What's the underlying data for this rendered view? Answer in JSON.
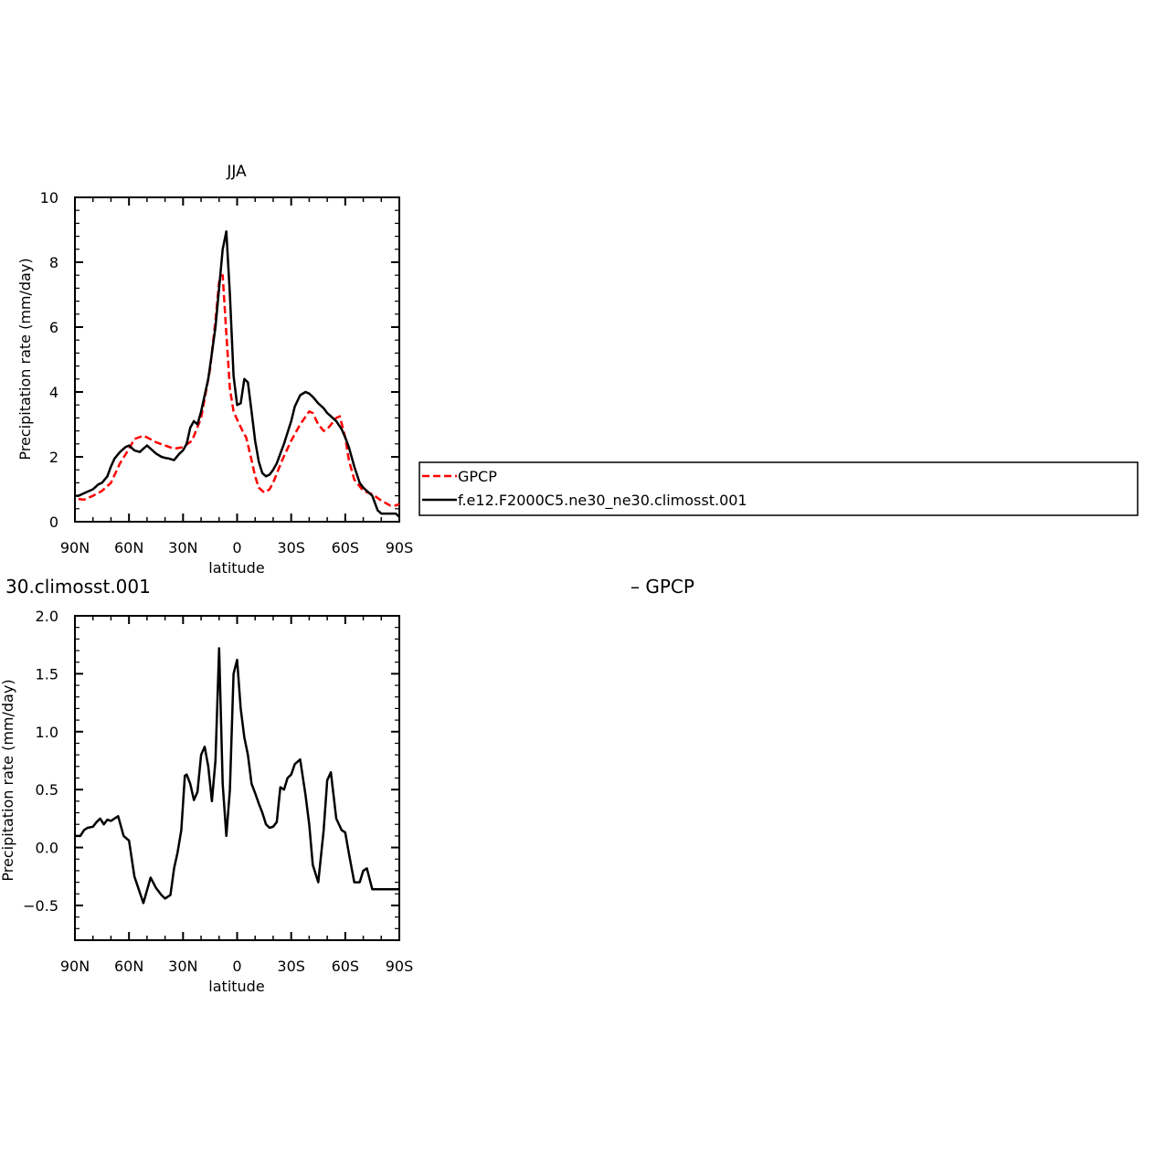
{
  "chart_data": [
    {
      "type": "line",
      "title": "JJA",
      "xlabel": "latitude",
      "ylabel": "Precipitation rate (mm/day)",
      "xlim": [
        -90,
        90
      ],
      "ylim": [
        0,
        10
      ],
      "xticks": [
        {
          "value": -90,
          "label": "90N"
        },
        {
          "value": -60,
          "label": "60N"
        },
        {
          "value": -30,
          "label": "30N"
        },
        {
          "value": 0,
          "label": "0"
        },
        {
          "value": 30,
          "label": "30S"
        },
        {
          "value": 60,
          "label": "60S"
        },
        {
          "value": 90,
          "label": "90S"
        }
      ],
      "yticks": [
        {
          "value": 0,
          "label": "0"
        },
        {
          "value": 2,
          "label": "2"
        },
        {
          "value": 4,
          "label": "4"
        },
        {
          "value": 6,
          "label": "6"
        },
        {
          "value": 8,
          "label": "8"
        },
        {
          "value": 10,
          "label": "10"
        }
      ],
      "legend_position": "right",
      "series": [
        {
          "name": "GPCP",
          "color": "#ff0000",
          "dash": "dashed",
          "x": [
            -88,
            -85,
            -80,
            -75,
            -70,
            -65,
            -60,
            -57,
            -52,
            -50,
            -45,
            -40,
            -35,
            -30,
            -25,
            -20,
            -15,
            -12,
            -10,
            -8,
            -6,
            -4,
            -2,
            0,
            3,
            5,
            8,
            10,
            12,
            15,
            18,
            20,
            25,
            30,
            35,
            40,
            42,
            45,
            48,
            50,
            55,
            57,
            60,
            62,
            65,
            70,
            75,
            80,
            85,
            88,
            90
          ],
          "y": [
            0.7,
            0.68,
            0.8,
            0.95,
            1.2,
            1.8,
            2.25,
            2.55,
            2.65,
            2.6,
            2.45,
            2.35,
            2.25,
            2.3,
            2.5,
            3.2,
            4.7,
            6.2,
            7.4,
            7.6,
            5.8,
            4.1,
            3.4,
            3.15,
            2.8,
            2.6,
            1.9,
            1.4,
            1.05,
            0.9,
            1.0,
            1.2,
            1.9,
            2.5,
            3.0,
            3.4,
            3.35,
            3.0,
            2.8,
            2.85,
            3.2,
            3.25,
            2.6,
            1.9,
            1.3,
            0.95,
            0.85,
            0.65,
            0.5,
            0.5,
            0.55
          ]
        },
        {
          "name": "f.e12.F2000C5.ne30_ne30.climosst.001",
          "color": "#000000",
          "dash": "solid",
          "x": [
            -90,
            -88,
            -84,
            -80,
            -77,
            -75,
            -72,
            -70,
            -68,
            -65,
            -62,
            -60,
            -57,
            -54,
            -52,
            -50,
            -45,
            -42,
            -40,
            -38,
            -35,
            -32,
            -30,
            -28,
            -26,
            -24,
            -22,
            -20,
            -18,
            -16,
            -14,
            -12,
            -10,
            -8,
            -6,
            -4,
            -2,
            0,
            2,
            4,
            6,
            8,
            10,
            12,
            14,
            16,
            18,
            20,
            22,
            24,
            26,
            28,
            30,
            32,
            35,
            38,
            40,
            42,
            45,
            48,
            50,
            52,
            55,
            58,
            60,
            62,
            65,
            68,
            70,
            72,
            75,
            78,
            80,
            82,
            85,
            88,
            90
          ],
          "y": [
            0.8,
            0.8,
            0.9,
            1.0,
            1.15,
            1.2,
            1.4,
            1.7,
            1.95,
            2.15,
            2.3,
            2.35,
            2.2,
            2.15,
            2.25,
            2.35,
            2.1,
            2.0,
            1.97,
            1.95,
            1.9,
            2.1,
            2.2,
            2.4,
            2.9,
            3.1,
            3.0,
            3.4,
            3.9,
            4.4,
            5.2,
            6.0,
            7.2,
            8.4,
            8.95,
            7.0,
            4.5,
            3.6,
            3.65,
            4.4,
            4.3,
            3.4,
            2.5,
            1.85,
            1.5,
            1.4,
            1.45,
            1.6,
            1.8,
            2.1,
            2.4,
            2.75,
            3.1,
            3.55,
            3.9,
            4.0,
            3.95,
            3.85,
            3.65,
            3.5,
            3.35,
            3.25,
            3.1,
            2.85,
            2.6,
            2.3,
            1.7,
            1.2,
            1.05,
            0.95,
            0.8,
            0.35,
            0.25,
            0.25,
            0.25,
            0.25,
            0.15
          ]
        }
      ]
    },
    {
      "type": "line",
      "title": "30.climosst.001",
      "title_right": "– GPCP",
      "xlabel": "latitude",
      "ylabel": "Precipitation rate (mm/day)",
      "xlim": [
        -90,
        90
      ],
      "ylim": [
        -0.8,
        2.0
      ],
      "xticks": [
        {
          "value": -90,
          "label": "90N"
        },
        {
          "value": -60,
          "label": "60N"
        },
        {
          "value": -30,
          "label": "30N"
        },
        {
          "value": 0,
          "label": "0"
        },
        {
          "value": 30,
          "label": "30S"
        },
        {
          "value": 60,
          "label": "60S"
        },
        {
          "value": 90,
          "label": "90S"
        }
      ],
      "yticks": [
        {
          "value": -0.5,
          "label": "−0.5"
        },
        {
          "value": 0.0,
          "label": "0.0"
        },
        {
          "value": 0.5,
          "label": "0.5"
        },
        {
          "value": 1.0,
          "label": "1.0"
        },
        {
          "value": 1.5,
          "label": "1.5"
        },
        {
          "value": 2.0,
          "label": "2.0"
        }
      ],
      "series": [
        {
          "name": "",
          "color": "#000000",
          "dash": "solid",
          "x": [
            -90,
            -87,
            -85,
            -83,
            -80,
            -78,
            -76,
            -74,
            -72,
            -70,
            -66,
            -63,
            -60,
            -57,
            -52,
            -48,
            -45,
            -42,
            -40,
            -37,
            -35,
            -33,
            -31,
            -29,
            -28,
            -26,
            -24,
            -22,
            -20,
            -18,
            -16,
            -14,
            -12,
            -10,
            -8,
            -6,
            -4,
            -2,
            0,
            2,
            4,
            6,
            8,
            10,
            12,
            14,
            16,
            18,
            20,
            22,
            24,
            26,
            28,
            30,
            32,
            35,
            38,
            40,
            42,
            45,
            48,
            50,
            52,
            55,
            58,
            60,
            62,
            65,
            68,
            70,
            72,
            75,
            78,
            80,
            82,
            85,
            88,
            90
          ],
          "y": [
            0.1,
            0.1,
            0.15,
            0.17,
            0.18,
            0.22,
            0.25,
            0.2,
            0.24,
            0.23,
            0.27,
            0.1,
            0.06,
            -0.25,
            -0.48,
            -0.26,
            -0.35,
            -0.41,
            -0.44,
            -0.41,
            -0.18,
            -0.04,
            0.15,
            0.62,
            0.63,
            0.55,
            0.41,
            0.48,
            0.8,
            0.87,
            0.7,
            0.4,
            0.75,
            1.72,
            0.55,
            0.1,
            0.5,
            1.5,
            1.62,
            1.2,
            0.95,
            0.8,
            0.55,
            0.47,
            0.38,
            0.3,
            0.2,
            0.17,
            0.18,
            0.22,
            0.52,
            0.5,
            0.6,
            0.63,
            0.72,
            0.76,
            0.45,
            0.2,
            -0.15,
            -0.3,
            0.15,
            0.58,
            0.65,
            0.25,
            0.15,
            0.13,
            -0.05,
            -0.3,
            -0.3,
            -0.2,
            -0.18,
            -0.36,
            -0.36,
            -0.36,
            -0.36,
            -0.36,
            -0.36,
            -0.36
          ]
        }
      ]
    }
  ],
  "legend": {
    "entries": [
      {
        "label": "GPCP",
        "color": "#ff0000",
        "dash": "dashed"
      },
      {
        "label": "f.e12.F2000C5.ne30_ne30.climosst.001",
        "color": "#000000",
        "dash": "solid"
      }
    ]
  }
}
